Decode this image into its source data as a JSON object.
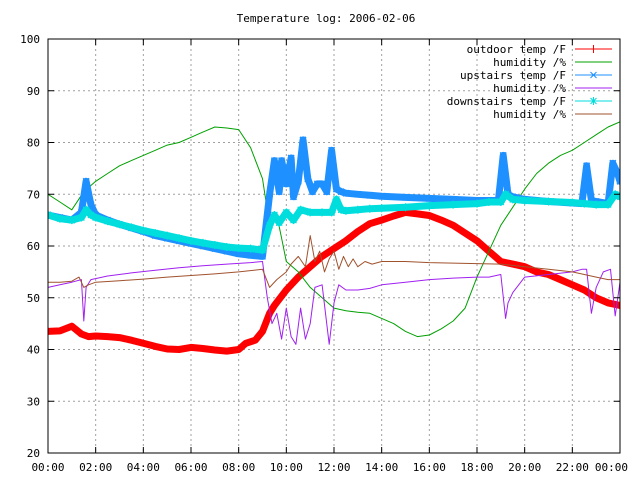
{
  "chart_data": {
    "type": "line",
    "title": "Temperature log: 2006-02-06",
    "xlabel": "",
    "ylabel": "",
    "xlim": [
      0,
      24
    ],
    "ylim": [
      20,
      100
    ],
    "grid": true,
    "legend_position": "top-right",
    "x_tick_labels": [
      "00:00",
      "02:00",
      "04:00",
      "06:00",
      "08:00",
      "10:00",
      "12:00",
      "14:00",
      "16:00",
      "18:00",
      "20:00",
      "22:00",
      "00:00"
    ],
    "y_tick_labels": [
      "20",
      "30",
      "40",
      "50",
      "60",
      "70",
      "80",
      "90",
      "100"
    ],
    "series": [
      {
        "name": "outdoor temp /F",
        "color": "#ff0000",
        "style": "thick",
        "x": [
          0,
          0.5,
          1.0,
          1.4,
          1.7,
          2.0,
          2.5,
          3.0,
          3.5,
          4.0,
          4.5,
          5.0,
          5.5,
          6.0,
          6.5,
          7.0,
          7.5,
          8.0,
          8.3,
          8.7,
          9.0,
          9.3,
          9.5,
          10.0,
          10.5,
          11.0,
          11.5,
          12.0,
          12.5,
          13.0,
          13.5,
          14.0,
          14.5,
          15.0,
          15.5,
          16.0,
          16.5,
          17.0,
          17.5,
          18.0,
          18.5,
          19.0,
          19.5,
          20.0,
          20.5,
          21.0,
          21.5,
          22.0,
          22.5,
          23.0,
          23.5,
          24.0
        ],
        "y": [
          43.5,
          43.6,
          44.5,
          43.0,
          42.5,
          42.6,
          42.5,
          42.3,
          41.8,
          41.2,
          40.6,
          40.1,
          40.0,
          40.4,
          40.2,
          39.9,
          39.7,
          40.0,
          41.2,
          41.8,
          43.5,
          47.0,
          48.5,
          51.5,
          54.0,
          56.0,
          58.0,
          59.5,
          61.0,
          62.8,
          64.3,
          65.0,
          65.8,
          66.5,
          66.2,
          65.9,
          65.0,
          64.0,
          62.5,
          61.0,
          59.0,
          57.0,
          56.5,
          56.0,
          55.0,
          54.5,
          53.5,
          52.5,
          51.5,
          50.0,
          49.0,
          48.5
        ]
      },
      {
        "name": "humidity /%",
        "color": "#00a000",
        "style": "thin",
        "x": [
          0,
          0.5,
          1.0,
          1.5,
          2.0,
          2.5,
          3.0,
          3.5,
          4.0,
          4.5,
          5.0,
          5.5,
          6.0,
          6.5,
          7.0,
          7.5,
          8.0,
          8.5,
          9.0,
          9.3,
          9.6,
          9.8,
          10.0,
          10.5,
          11.0,
          11.5,
          12.0,
          12.5,
          13.0,
          13.5,
          14.0,
          14.5,
          15.0,
          15.5,
          16.0,
          16.5,
          17.0,
          17.5,
          18.0,
          18.5,
          19.0,
          19.5,
          20.0,
          20.5,
          21.0,
          21.5,
          22.0,
          22.5,
          23.0,
          23.5,
          24.0
        ],
        "y": [
          70.0,
          68.5,
          67.0,
          70.5,
          72.5,
          74.0,
          75.5,
          76.5,
          77.5,
          78.5,
          79.5,
          80.0,
          81.0,
          82.0,
          83.0,
          82.8,
          82.5,
          79.0,
          73.0,
          64.0,
          66.0,
          61.5,
          57.0,
          55.0,
          52.0,
          50.0,
          48.0,
          47.5,
          47.2,
          47.0,
          46.0,
          45.0,
          43.5,
          42.5,
          42.8,
          44.0,
          45.5,
          48.0,
          54.0,
          59.0,
          64.0,
          67.5,
          71.0,
          74.0,
          76.0,
          77.5,
          78.5,
          80.0,
          81.5,
          83.0,
          84.0
        ]
      },
      {
        "name": "upstairs temp /F",
        "color": "#1e90ff",
        "style": "thick-marker",
        "x": [
          0,
          0.5,
          1.0,
          1.4,
          1.6,
          1.8,
          2.0,
          2.5,
          3.0,
          3.5,
          4.0,
          4.5,
          5.0,
          5.5,
          6.0,
          6.5,
          7.0,
          7.5,
          8.0,
          8.5,
          9.0,
          9.3,
          9.5,
          9.7,
          9.8,
          10.0,
          10.2,
          10.3,
          10.5,
          10.7,
          10.9,
          11.1,
          11.3,
          11.5,
          11.7,
          11.9,
          12.1,
          12.3,
          12.5,
          13.0,
          13.5,
          14.0,
          15.0,
          16.0,
          17.0,
          18.0,
          18.5,
          18.9,
          19.1,
          19.3,
          19.5,
          20.0,
          21.0,
          22.0,
          22.4,
          22.6,
          22.8,
          23.0,
          23.5,
          23.7,
          23.9,
          24.0
        ],
        "y": [
          66.0,
          65.5,
          65.0,
          66.5,
          72.5,
          68.0,
          66.0,
          65.0,
          64.2,
          63.5,
          62.8,
          62.0,
          61.5,
          61.0,
          60.5,
          60.0,
          59.5,
          59.0,
          58.5,
          58.2,
          58.0,
          70.0,
          76.5,
          70.5,
          76.5,
          72.0,
          77.0,
          69.5,
          72.5,
          80.5,
          73.0,
          70.5,
          72.0,
          72.0,
          70.5,
          78.5,
          71.0,
          70.5,
          70.2,
          70.0,
          69.8,
          69.6,
          69.4,
          69.2,
          69.0,
          68.8,
          68.8,
          68.8,
          77.5,
          70.0,
          69.5,
          69.0,
          68.6,
          68.3,
          68.2,
          75.5,
          68.8,
          68.6,
          68.2,
          76.0,
          74.0,
          72.5
        ]
      },
      {
        "name": "humidity /%",
        "color": "#a020f0",
        "style": "thin",
        "x": [
          0,
          0.5,
          1.0,
          1.4,
          1.5,
          1.6,
          1.8,
          2.5,
          3.5,
          4.5,
          5.5,
          6.5,
          7.5,
          8.5,
          9.0,
          9.2,
          9.4,
          9.6,
          9.8,
          10.0,
          10.2,
          10.4,
          10.6,
          10.8,
          11.0,
          11.2,
          11.5,
          11.8,
          12.0,
          12.2,
          12.5,
          13.0,
          13.5,
          14.0,
          15.0,
          16.0,
          17.0,
          18.0,
          18.5,
          19.0,
          19.2,
          19.3,
          19.5,
          20.0,
          21.0,
          22.0,
          22.4,
          22.6,
          22.8,
          23.0,
          23.3,
          23.6,
          23.8,
          24.0
        ],
        "y": [
          52.0,
          52.5,
          53.0,
          53.5,
          45.5,
          52.0,
          53.5,
          54.2,
          54.8,
          55.3,
          55.8,
          56.2,
          56.5,
          56.8,
          57.0,
          50.0,
          45.0,
          47.0,
          42.0,
          48.0,
          42.5,
          41.0,
          48.0,
          42.0,
          45.0,
          52.0,
          52.5,
          41.0,
          49.0,
          52.5,
          51.5,
          51.5,
          51.8,
          52.5,
          53.0,
          53.5,
          53.8,
          54.0,
          54.0,
          54.5,
          46.0,
          49.0,
          51.0,
          54.0,
          54.5,
          55.0,
          55.5,
          55.5,
          47.0,
          52.0,
          55.0,
          55.5,
          46.5,
          53.0
        ]
      },
      {
        "name": "downstairs temp /F",
        "color": "#00dddd",
        "style": "thick-marker",
        "x": [
          0,
          0.5,
          1.0,
          1.4,
          1.6,
          1.8,
          2.0,
          2.5,
          3.0,
          3.5,
          4.0,
          4.5,
          5.0,
          5.5,
          6.0,
          6.5,
          7.0,
          7.5,
          8.0,
          8.5,
          9.0,
          9.3,
          9.5,
          9.7,
          10.0,
          10.3,
          10.6,
          11.0,
          11.5,
          11.9,
          12.1,
          12.3,
          12.5,
          13.0,
          13.5,
          14.0,
          15.0,
          16.0,
          17.0,
          18.0,
          18.5,
          19.0,
          19.2,
          19.5,
          20.0,
          21.0,
          22.0,
          22.5,
          23.0,
          23.5,
          23.8,
          24.0
        ],
        "y": [
          66.0,
          65.3,
          65.0,
          65.5,
          67.0,
          66.0,
          65.5,
          64.8,
          64.2,
          63.6,
          63.0,
          62.5,
          62.0,
          61.5,
          61.0,
          60.6,
          60.2,
          59.8,
          59.6,
          59.5,
          59.2,
          64.0,
          66.0,
          64.5,
          66.5,
          65.0,
          67.0,
          66.5,
          66.5,
          66.5,
          69.0,
          67.0,
          66.8,
          67.0,
          67.2,
          67.3,
          67.5,
          67.8,
          68.0,
          68.2,
          68.5,
          68.5,
          70.0,
          69.0,
          68.8,
          68.6,
          68.4,
          68.2,
          68.0,
          68.0,
          70.0,
          69.5
        ]
      },
      {
        "name": "humidity /%",
        "color": "#a0522d",
        "style": "thin",
        "x": [
          0,
          0.5,
          1.0,
          1.3,
          1.5,
          1.7,
          2.0,
          3.0,
          4.0,
          5.0,
          6.0,
          7.0,
          8.0,
          9.0,
          9.3,
          9.6,
          10.0,
          10.2,
          10.5,
          10.8,
          11.0,
          11.2,
          11.4,
          11.6,
          11.8,
          12.0,
          12.2,
          12.4,
          12.6,
          12.8,
          13.0,
          13.3,
          13.6,
          14.0,
          15.0,
          16.0,
          17.0,
          18.0,
          19.0,
          20.0,
          21.0,
          22.0,
          22.5,
          23.0,
          23.5,
          24.0
        ],
        "y": [
          53.0,
          53.0,
          53.2,
          54.0,
          52.0,
          52.5,
          53.0,
          53.3,
          53.6,
          54.0,
          54.3,
          54.6,
          55.0,
          55.5,
          52.0,
          53.5,
          55.0,
          56.5,
          58.0,
          56.0,
          62.0,
          57.0,
          59.0,
          55.0,
          57.5,
          59.0,
          55.5,
          58.0,
          56.0,
          57.5,
          56.0,
          57.0,
          56.5,
          57.0,
          57.0,
          56.8,
          56.7,
          56.6,
          56.5,
          56.0,
          55.5,
          55.0,
          54.5,
          54.0,
          53.5,
          53.5
        ]
      }
    ]
  }
}
